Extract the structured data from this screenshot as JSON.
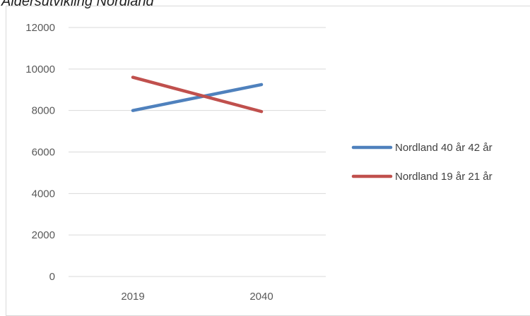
{
  "heading": "Aldersutvikling Nordland",
  "chart_data": {
    "type": "line",
    "categories": [
      "2019",
      "2040"
    ],
    "series": [
      {
        "name": "Nordland 40 år 42 år",
        "values": [
          8000,
          9250
        ],
        "color": "#4f81bd"
      },
      {
        "name": "Nordland 19 år 21 år",
        "values": [
          9600,
          7950
        ],
        "color": "#c0504d"
      }
    ],
    "ylim": [
      0,
      12000
    ],
    "yticks": [
      0,
      2000,
      4000,
      6000,
      8000,
      10000,
      12000
    ],
    "grid": true,
    "legend": "right",
    "title": "",
    "xlabel": "",
    "ylabel": ""
  }
}
